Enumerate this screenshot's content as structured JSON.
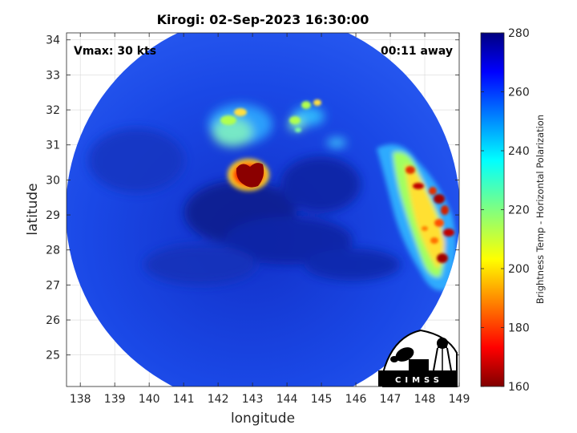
{
  "title": "Kirogi: 02-Sep-2023 16:30:00",
  "vmax_text": "Vmax: 30 kts",
  "away_text": "00:11 away",
  "xlabel": "longitude",
  "ylabel": "latitude",
  "colorbar": {
    "label": "Brightness Temp - Horizontal Polarization",
    "range": [
      160,
      280
    ],
    "ticks": [
      "280",
      "260",
      "240",
      "220",
      "200",
      "180",
      "160"
    ],
    "tick_values": [
      280,
      260,
      240,
      220,
      200,
      180,
      160
    ],
    "colormap": "jet-reversed"
  },
  "map": {
    "lon_range": [
      137.6,
      149.0
    ],
    "lat_range": [
      24.1,
      34.2
    ],
    "lon_ticks": [
      "138",
      "139",
      "140",
      "141",
      "142",
      "143",
      "144",
      "145",
      "146",
      "147",
      "148",
      "149"
    ],
    "lon_tick_values": [
      138,
      139,
      140,
      141,
      142,
      143,
      144,
      145,
      146,
      147,
      148,
      149
    ],
    "lat_ticks": [
      "34",
      "33",
      "32",
      "31",
      "30",
      "29",
      "28",
      "27",
      "26",
      "25"
    ],
    "lat_tick_values": [
      34,
      33,
      32,
      31,
      30,
      29,
      28,
      27,
      26,
      25
    ],
    "grid": true,
    "storm_center": {
      "lon": 143.0,
      "lat": 29.9
    }
  },
  "logo": {
    "text": "CIMSS"
  },
  "colors": {
    "background_swath": "#1a47e8",
    "cold_cloud": "#8b0000",
    "grid": "#d9d9d9"
  }
}
